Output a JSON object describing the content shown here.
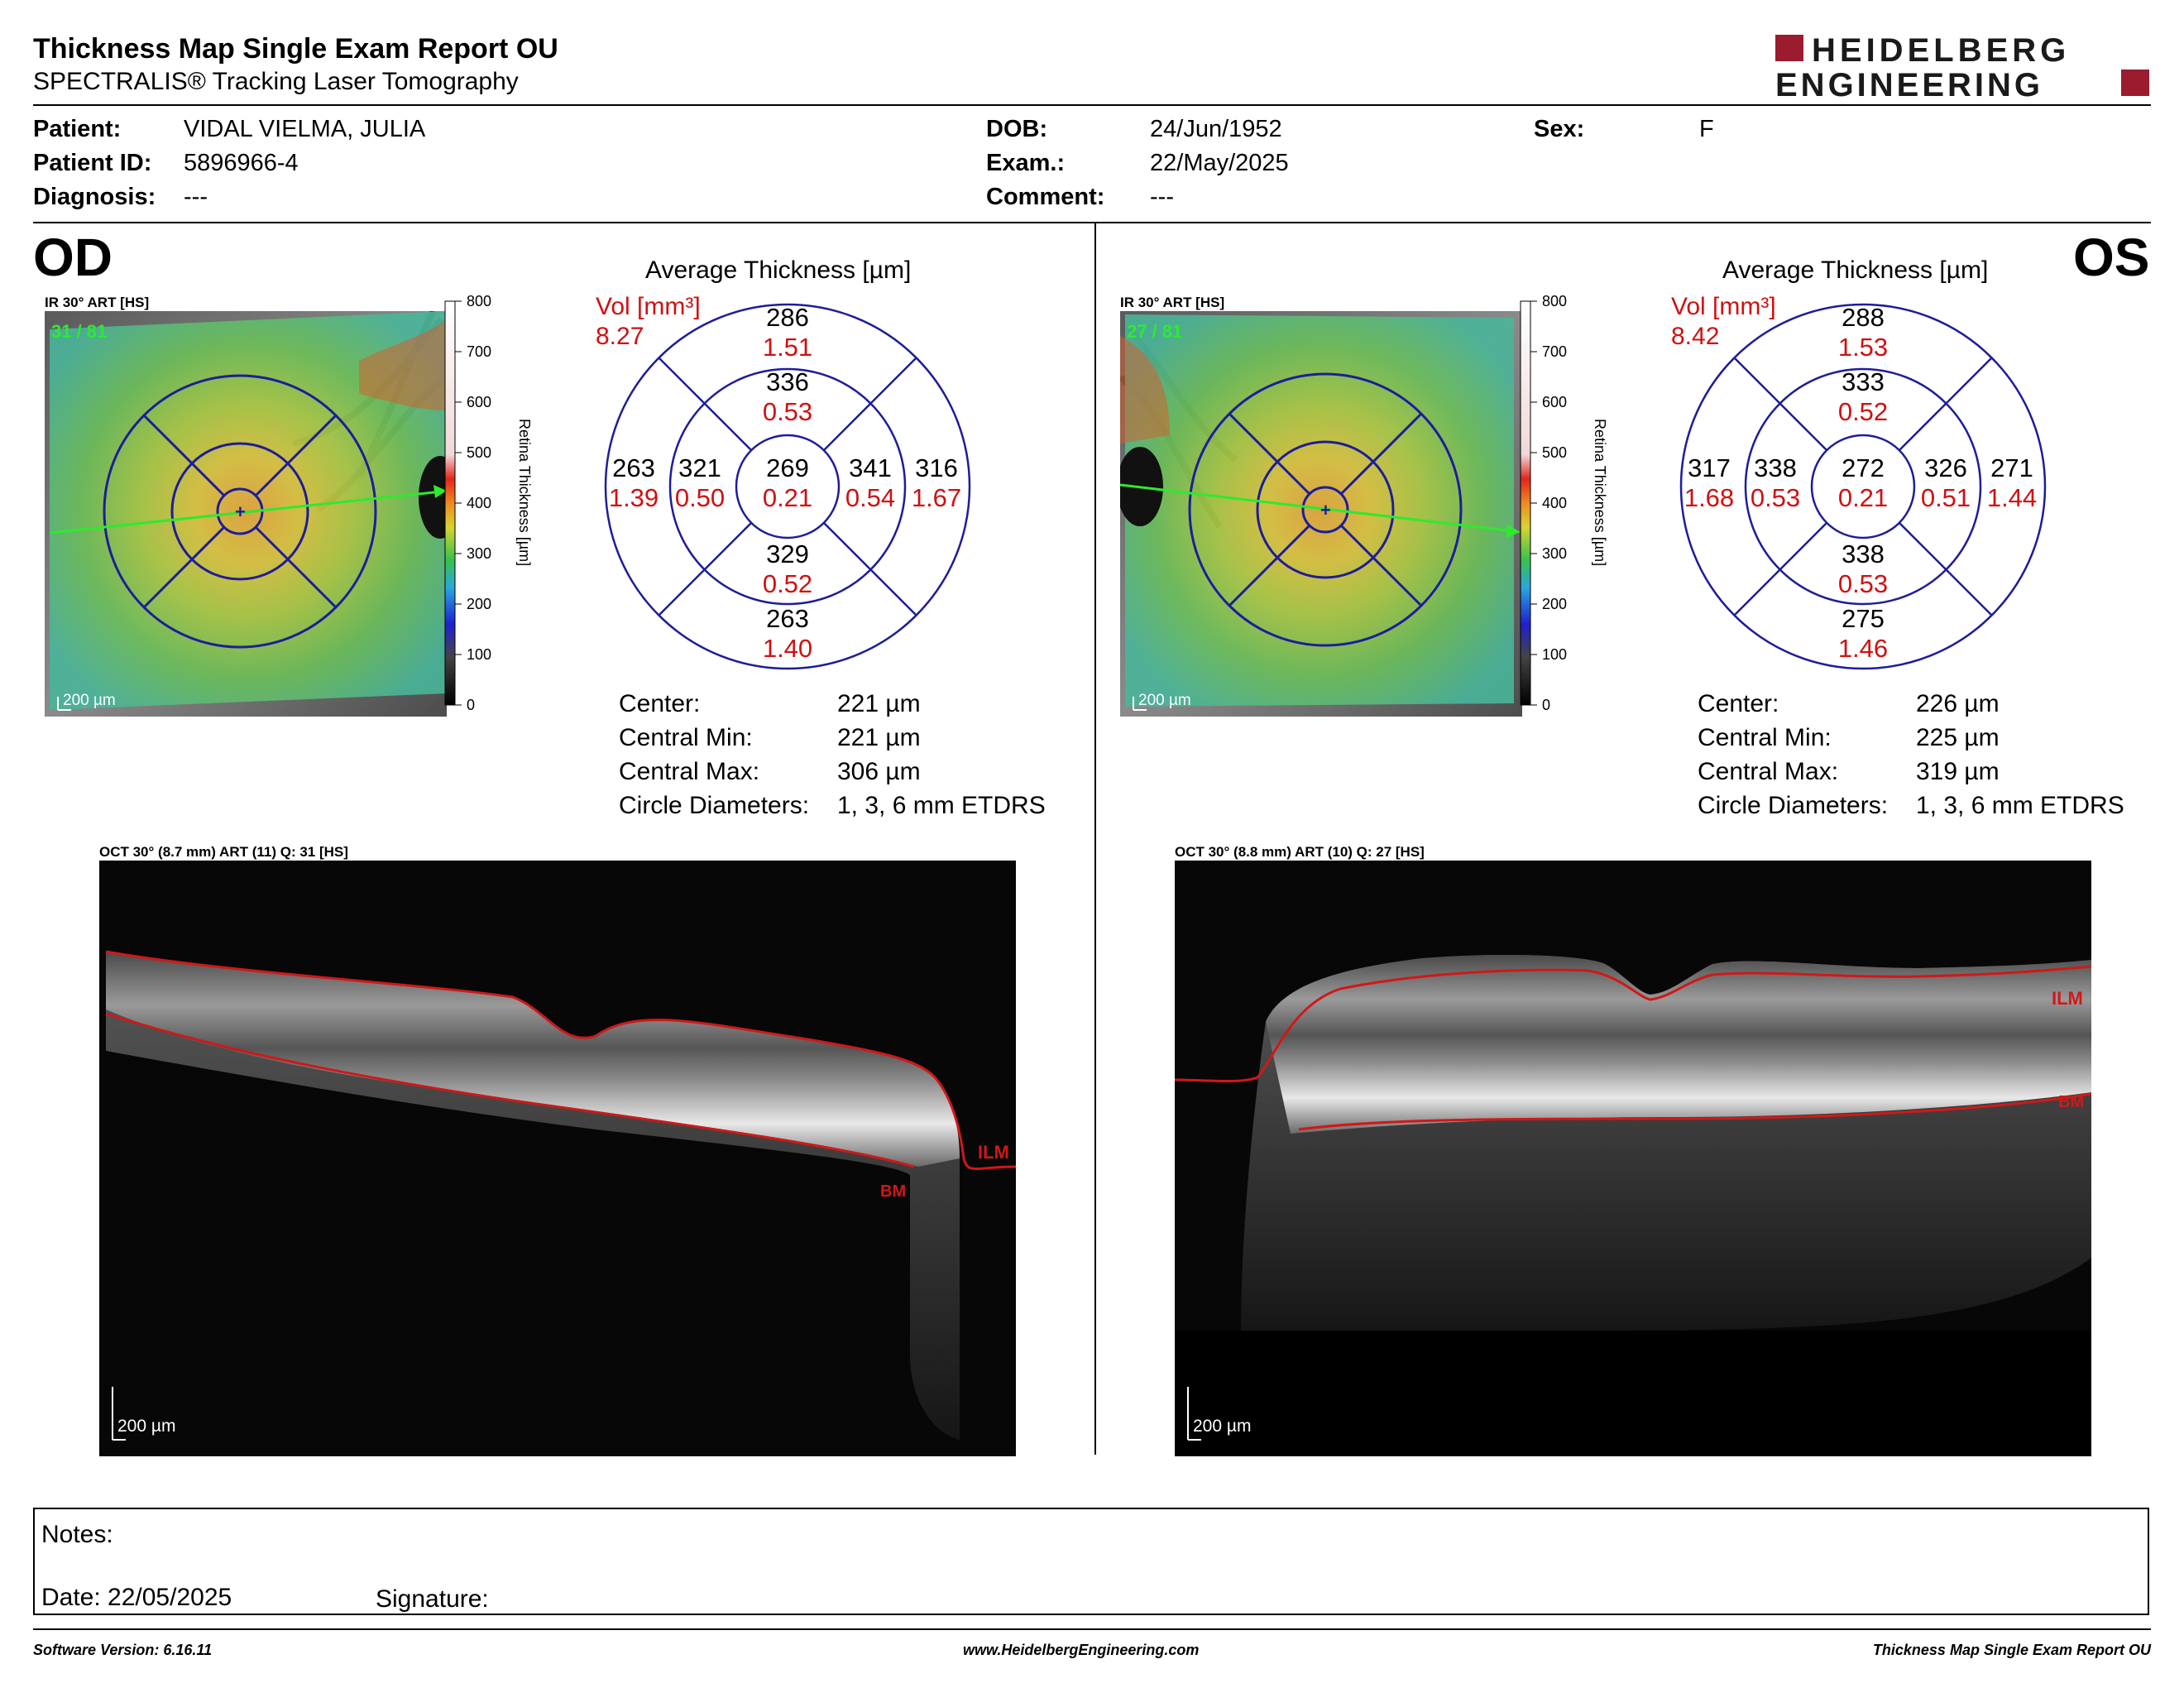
{
  "header": {
    "title": "Thickness Map Single Exam Report OU",
    "subtitle": "SPECTRALIS® Tracking Laser Tomography",
    "logo_line1": "HEIDELBERG",
    "logo_line2": "ENGINEERING"
  },
  "patient": {
    "patient_label": "Patient:",
    "patient_value": "VIDAL VIELMA, JULIA",
    "id_label": "Patient ID:",
    "id_value": "5896966-4",
    "diagnosis_label": "Diagnosis:",
    "diagnosis_value": "---",
    "dob_label": "DOB:",
    "dob_value": "24/Jun/1952",
    "exam_label": "Exam.:",
    "exam_value": "22/May/2025",
    "comment_label": "Comment:",
    "comment_value": "---",
    "sex_label": "Sex:",
    "sex_value": "F"
  },
  "scale": {
    "title": "Retina Thickness [µm]",
    "ticks": [
      "800",
      "700",
      "600",
      "500",
      "400",
      "300",
      "200",
      "100",
      "0"
    ]
  },
  "avg_title": "Average Thickness [µm]",
  "vol_label": "Vol [mm³]",
  "stats_labels": {
    "center": "Center:",
    "min": "Central Min:",
    "max": "Central Max:",
    "diam": "Circle Diameters:"
  },
  "od": {
    "eye": "OD",
    "fundus_label": "IR 30° ART [HS]",
    "fundus_overlay": "31 / 81",
    "scalebar": "200 µm",
    "vol_total": "8.27",
    "grid": {
      "center": {
        "t": "269",
        "v": "0.21"
      },
      "inner_top": {
        "t": "336",
        "v": "0.53"
      },
      "inner_bottom": {
        "t": "329",
        "v": "0.52"
      },
      "inner_left": {
        "t": "321",
        "v": "0.50"
      },
      "inner_right": {
        "t": "341",
        "v": "0.54"
      },
      "outer_top": {
        "t": "286",
        "v": "1.51"
      },
      "outer_bottom": {
        "t": "263",
        "v": "1.40"
      },
      "outer_left": {
        "t": "263",
        "v": "1.39"
      },
      "outer_right": {
        "t": "316",
        "v": "1.67"
      }
    },
    "stats": {
      "center": "221 µm",
      "min": "221 µm",
      "max": "306 µm",
      "diam": "1, 3, 6 mm ETDRS"
    },
    "oct_label": "OCT 30° (8.7 mm) ART (11) Q: 31 [HS]",
    "oct_scalebar": "200 µm",
    "ilm": "ILM",
    "bm": "BM"
  },
  "os": {
    "eye": "OS",
    "fundus_label": "IR 30° ART [HS]",
    "fundus_overlay": "27 / 81",
    "scalebar": "200 µm",
    "vol_total": "8.42",
    "grid": {
      "center": {
        "t": "272",
        "v": "0.21"
      },
      "inner_top": {
        "t": "333",
        "v": "0.52"
      },
      "inner_bottom": {
        "t": "338",
        "v": "0.53"
      },
      "inner_left": {
        "t": "338",
        "v": "0.53"
      },
      "inner_right": {
        "t": "326",
        "v": "0.51"
      },
      "outer_top": {
        "t": "288",
        "v": "1.53"
      },
      "outer_bottom": {
        "t": "275",
        "v": "1.46"
      },
      "outer_left": {
        "t": "317",
        "v": "1.68"
      },
      "outer_right": {
        "t": "271",
        "v": "1.44"
      }
    },
    "stats": {
      "center": "226 µm",
      "min": "225 µm",
      "max": "319 µm",
      "diam": "1, 3, 6 mm ETDRS"
    },
    "oct_label": "OCT 30° (8.8 mm) ART (10) Q: 27 [HS]",
    "oct_scalebar": "200 µm",
    "ilm": "ILM",
    "bm": "BM"
  },
  "notes": {
    "notes_label": "Notes:",
    "date_label": "Date: 22/05/2025",
    "signature_label": "Signature:"
  },
  "footer": {
    "software": "Software Version: 6.16.11",
    "website": "www.HeidelbergEngineering.com",
    "report": "Thickness Map Single Exam Report OU"
  }
}
